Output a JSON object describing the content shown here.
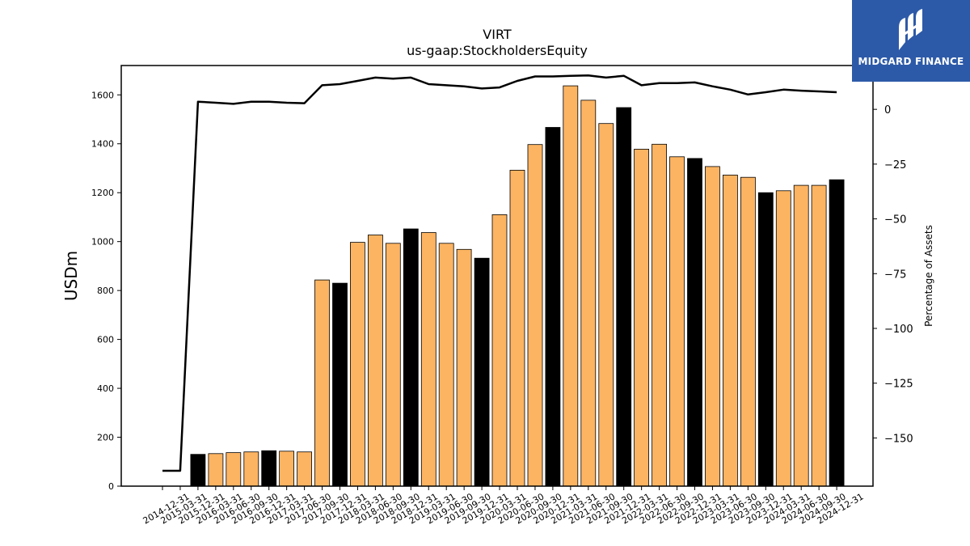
{
  "brand": {
    "name": "MIDGARD FINANCE",
    "color": "#2d5aa8"
  },
  "chart_data": {
    "type": "bar",
    "title": "VIRT",
    "subtitle": "us-gaap:StockholdersEquity",
    "ylabel": "USDm",
    "y2label": "Percentage of Assets",
    "ylim": [
      0,
      1720
    ],
    "y2lim": [
      -172,
      20
    ],
    "yticks": [
      0,
      200,
      400,
      600,
      800,
      1000,
      1200,
      1400,
      1600
    ],
    "y2ticks": [
      0,
      -25,
      -50,
      -75,
      -100,
      -125,
      -150
    ],
    "y2tick_labels": [
      "0",
      "−25",
      "−50",
      "−75",
      "−100",
      "−125",
      "−150"
    ],
    "grid": false,
    "colors": {
      "annual": "#000000",
      "quarterly": "#fdb462",
      "line": "#000000"
    },
    "categories": [
      "2014-12-31",
      "2015-03-31",
      "2015-12-31",
      "2016-03-31",
      "2016-06-30",
      "2016-09-30",
      "2016-12-31",
      "2017-03-31",
      "2017-06-30",
      "2017-09-30",
      "2017-12-31",
      "2018-03-31",
      "2018-06-30",
      "2018-09-30",
      "2018-12-31",
      "2019-03-31",
      "2019-06-30",
      "2019-09-30",
      "2019-12-31",
      "2020-03-31",
      "2020-06-30",
      "2020-09-30",
      "2020-12-31",
      "2021-03-31",
      "2021-06-30",
      "2021-09-30",
      "2021-12-31",
      "2022-03-31",
      "2022-06-30",
      "2022-09-30",
      "2022-12-31",
      "2023-03-31",
      "2023-06-30",
      "2023-09-30",
      "2023-12-31",
      "2024-03-31",
      "2024-06-30",
      "2024-09-30",
      "2024-12-31"
    ],
    "values": [
      null,
      null,
      130,
      133,
      137,
      140,
      145,
      143,
      140,
      843,
      830,
      997,
      1027,
      993,
      1052,
      1037,
      993,
      968,
      932,
      1110,
      1292,
      1397,
      1467,
      1637,
      1578,
      1483,
      1548,
      1378,
      1398,
      1347,
      1340,
      1307,
      1272,
      1263,
      1200,
      1208,
      1230,
      1230,
      1253
    ],
    "annual": [
      false,
      false,
      true,
      false,
      false,
      false,
      true,
      false,
      false,
      false,
      true,
      false,
      false,
      false,
      true,
      false,
      false,
      false,
      true,
      false,
      false,
      false,
      true,
      false,
      false,
      false,
      true,
      false,
      false,
      false,
      true,
      false,
      false,
      false,
      true,
      false,
      false,
      false,
      true
    ],
    "series": [
      {
        "name": "Percentage of Assets",
        "axis": "right",
        "values": [
          -165,
          -165,
          3.5,
          3,
          2.5,
          3.5,
          3.5,
          3,
          2.8,
          11,
          11.5,
          13,
          14.5,
          14,
          14.5,
          11.5,
          11,
          10.5,
          9.5,
          10,
          13,
          15,
          15,
          15.3,
          15.5,
          14.5,
          15.3,
          11,
          12,
          12,
          12.3,
          10.5,
          9,
          6.8,
          7.8,
          9,
          8.5,
          8.2,
          7.8
        ]
      }
    ]
  }
}
